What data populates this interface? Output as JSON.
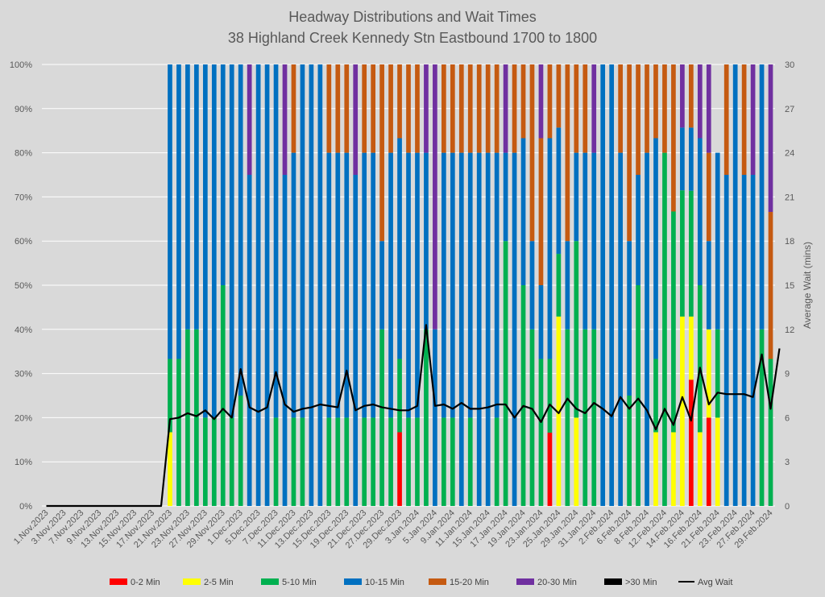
{
  "chart_data": {
    "type": "bar",
    "stacked": true,
    "percent": true,
    "title": "Headway Distributions and Wait Times",
    "subtitle": "38 Highland Creek  Kennedy Stn Eastbound 1700 to 1800",
    "ylabel_right": "Average Wait (mins)",
    "ylim_left": [
      0,
      100
    ],
    "ylim_right": [
      0,
      30
    ],
    "yticks_left": [
      "0%",
      "10%",
      "20%",
      "30%",
      "40%",
      "50%",
      "60%",
      "70%",
      "80%",
      "90%",
      "100%"
    ],
    "yticks_right": [
      "0",
      "3",
      "6",
      "9",
      "12",
      "15",
      "18",
      "21",
      "24",
      "27",
      "30"
    ],
    "grid": true,
    "legend_position": "bottom",
    "x_tick_labels": [
      "1.Nov.2023",
      "3.Nov.2023",
      "7.Nov.2023",
      "9.Nov.2023",
      "13.Nov.2023",
      "15.Nov.2023",
      "17.Nov.2023",
      "21.Nov.2023",
      "23.Nov.2023",
      "27.Nov.2023",
      "29.Nov.2023",
      "1.Dec.2023",
      "5.Dec.2023",
      "7.Dec.2023",
      "11.Dec.2023",
      "13.Dec.2023",
      "15.Dec.2023",
      "19.Dec.2023",
      "21.Dec.2023",
      "27.Dec.2023",
      "29.Dec.2023",
      "3.Jan.2024",
      "5.Jan.2024",
      "9.Jan.2024",
      "11.Jan.2024",
      "15.Jan.2024",
      "17.Jan.2024",
      "19.Jan.2024",
      "23.Jan.2024",
      "25.Jan.2024",
      "29.Jan.2024",
      "31.Jan.2024",
      "2.Feb.2024",
      "6.Feb.2024",
      "8.Feb.2024",
      "12.Feb.2024",
      "14.Feb.2024",
      "16.Feb.2024",
      "21.Feb.2024",
      "23.Feb.2024",
      "27.Feb.2024",
      "29.Feb.2024"
    ],
    "series": [
      {
        "name": "0-2 Min",
        "color": "#ff0000"
      },
      {
        "name": "2-5 Min",
        "color": "#ffff00"
      },
      {
        "name": "5-10 Min",
        "color": "#00b050"
      },
      {
        "name": "10-15 Min",
        "color": "#0070c0"
      },
      {
        "name": "15-20 Min",
        "color": "#c55a11"
      },
      {
        "name": "20-30 Min",
        "color": "#7030a0"
      },
      {
        "name": ">30 Min",
        "color": "#000000"
      },
      {
        "name": "Avg Wait",
        "color": "#000000",
        "type": "line"
      }
    ],
    "bars": [
      [
        0,
        0,
        0,
        0,
        0,
        0,
        0
      ],
      [
        0,
        0,
        0,
        0,
        0,
        0,
        0
      ],
      [
        0,
        0,
        0,
        0,
        0,
        0,
        0
      ],
      [
        0,
        0,
        0,
        0,
        0,
        0,
        0
      ],
      [
        0,
        0,
        0,
        0,
        0,
        0,
        0
      ],
      [
        0,
        0,
        0,
        0,
        0,
        0,
        0
      ],
      [
        0,
        0,
        0,
        0,
        0,
        0,
        0
      ],
      [
        0,
        0,
        0,
        0,
        0,
        0,
        0
      ],
      [
        0,
        0,
        0,
        0,
        0,
        0,
        0
      ],
      [
        0,
        0,
        0,
        0,
        0,
        0,
        0
      ],
      [
        0,
        0,
        0,
        0,
        0,
        0,
        0
      ],
      [
        0,
        0,
        0,
        0,
        0,
        0,
        0
      ],
      [
        0,
        0,
        0,
        0,
        0,
        0,
        0
      ],
      [
        0,
        0,
        0,
        0,
        0,
        0,
        0
      ],
      [
        0,
        16.7,
        16.6,
        66.7,
        0,
        0,
        0
      ],
      [
        0,
        0,
        33.3,
        66.7,
        0,
        0,
        0
      ],
      [
        0,
        0,
        40,
        60,
        0,
        0,
        0
      ],
      [
        0,
        0,
        40,
        60,
        0,
        0,
        0
      ],
      [
        0,
        0,
        20,
        80,
        0,
        0,
        0
      ],
      [
        0,
        0,
        20,
        80,
        0,
        0,
        0
      ],
      [
        0,
        0,
        50,
        50,
        0,
        0,
        0
      ],
      [
        0,
        0,
        20,
        80,
        0,
        0,
        0
      ],
      [
        0,
        0,
        25,
        75,
        0,
        0,
        0
      ],
      [
        0,
        0,
        0,
        75,
        0,
        25,
        0
      ],
      [
        0,
        0,
        0,
        100,
        0,
        0,
        0
      ],
      [
        0,
        0,
        0,
        100,
        0,
        0,
        0
      ],
      [
        0,
        0,
        20,
        80,
        0,
        0,
        0
      ],
      [
        0,
        0,
        0,
        75,
        0,
        25,
        0
      ],
      [
        0,
        0,
        20,
        60,
        20,
        0,
        0
      ],
      [
        0,
        0,
        20,
        80,
        0,
        0,
        0
      ],
      [
        0,
        0,
        0,
        100,
        0,
        0,
        0
      ],
      [
        0,
        0,
        0,
        100,
        0,
        0,
        0
      ],
      [
        0,
        0,
        20,
        60,
        20,
        0,
        0
      ],
      [
        0,
        0,
        20,
        60,
        20,
        0,
        0
      ],
      [
        0,
        0,
        20,
        60,
        20,
        0,
        0
      ],
      [
        0,
        0,
        0,
        75,
        0,
        25,
        0
      ],
      [
        0,
        0,
        20,
        60,
        20,
        0,
        0
      ],
      [
        0,
        0,
        20,
        60,
        20,
        0,
        0
      ],
      [
        0,
        0,
        40,
        20,
        40,
        0,
        0
      ],
      [
        0,
        0,
        20,
        60,
        20,
        0,
        0
      ],
      [
        16.7,
        0,
        16.6,
        50,
        16.7,
        0,
        0
      ],
      [
        0,
        0,
        20,
        60,
        20,
        0,
        0
      ],
      [
        0,
        0,
        20,
        60,
        20,
        0,
        0
      ],
      [
        0,
        0,
        40,
        40,
        0,
        20,
        0
      ],
      [
        0,
        0,
        0,
        40,
        0,
        60,
        0
      ],
      [
        0,
        0,
        20,
        60,
        20,
        0,
        0
      ],
      [
        0,
        0,
        20,
        60,
        20,
        0,
        0
      ],
      [
        0,
        0,
        0,
        80,
        20,
        0,
        0
      ],
      [
        0,
        0,
        20,
        60,
        20,
        0,
        0
      ],
      [
        0,
        0,
        0,
        80,
        20,
        0,
        0
      ],
      [
        0,
        0,
        0,
        80,
        20,
        0,
        0
      ],
      [
        0,
        0,
        20,
        60,
        20,
        0,
        0
      ],
      [
        0,
        0,
        60,
        20,
        0,
        20,
        0
      ],
      [
        0,
        0,
        0,
        80,
        20,
        0,
        0
      ],
      [
        0,
        0,
        50,
        33.3,
        16.7,
        0,
        0
      ],
      [
        0,
        0,
        40,
        20,
        40,
        0,
        0
      ],
      [
        0,
        0,
        33.3,
        16.7,
        33.3,
        16.7,
        0
      ],
      [
        16.6,
        0,
        16.7,
        50,
        16.7,
        0,
        0
      ],
      [
        0,
        42.9,
        14.2,
        28.6,
        14.3,
        0,
        0
      ],
      [
        0,
        0,
        40,
        20,
        40,
        0,
        0
      ],
      [
        0,
        20,
        40,
        20,
        20,
        0,
        0
      ],
      [
        0,
        0,
        40,
        40,
        20,
        0,
        0
      ],
      [
        0,
        0,
        40,
        40,
        0,
        20,
        0
      ],
      [
        0,
        0,
        0,
        100,
        0,
        0,
        0
      ],
      [
        0,
        0,
        0,
        100,
        0,
        0,
        0
      ],
      [
        0,
        0,
        0,
        80,
        20,
        0,
        0
      ],
      [
        0,
        0,
        25,
        35,
        40,
        0,
        0
      ],
      [
        0,
        0,
        50,
        25,
        25,
        0,
        0
      ],
      [
        0,
        0,
        0,
        80,
        20,
        0,
        0
      ],
      [
        0,
        16.7,
        16.6,
        50,
        16.7,
        0,
        0
      ],
      [
        0,
        0,
        80,
        0,
        20,
        0,
        0
      ],
      [
        0,
        16.7,
        50,
        0,
        33.3,
        0,
        0
      ],
      [
        0,
        42.9,
        28.6,
        14.2,
        0,
        14.3,
        0
      ],
      [
        28.6,
        14.3,
        28.5,
        14.3,
        14.3,
        0,
        0
      ],
      [
        0,
        16.7,
        33.3,
        33.3,
        0,
        16.7,
        0
      ],
      [
        20,
        20,
        0,
        20,
        20,
        20,
        0
      ],
      [
        0,
        20,
        20,
        40,
        0,
        0,
        0
      ],
      [
        0,
        0,
        0,
        75,
        25,
        0,
        0
      ],
      [
        0,
        0,
        0,
        100,
        0,
        0,
        0
      ],
      [
        0,
        0,
        0,
        75,
        25,
        0,
        0
      ],
      [
        0,
        0,
        0,
        75,
        0,
        25,
        0
      ],
      [
        0,
        0,
        40,
        60,
        0,
        0,
        0
      ],
      [
        0,
        0,
        33.3,
        0,
        33.3,
        33.4,
        0
      ]
    ],
    "avg_wait": [
      0,
      0,
      0,
      0,
      0,
      0,
      0,
      0,
      0,
      0,
      0,
      0,
      0,
      0,
      5.9,
      6.0,
      6.3,
      6.1,
      6.5,
      5.9,
      6.6,
      6.0,
      9.3,
      6.7,
      6.4,
      6.7,
      9.1,
      6.9,
      6.4,
      6.6,
      6.7,
      6.9,
      6.8,
      6.7,
      9.2,
      6.5,
      6.8,
      6.9,
      6.7,
      6.6,
      6.5,
      6.5,
      6.8,
      12.3,
      6.8,
      6.9,
      6.6,
      7.0,
      6.6,
      6.6,
      6.7,
      6.9,
      6.9,
      6.0,
      6.8,
      6.6,
      5.7,
      6.9,
      6.3,
      7.3,
      6.6,
      6.3,
      7.0,
      6.6,
      6.1,
      7.4,
      6.6,
      7.3,
      6.5,
      5.2,
      6.6,
      5.5,
      7.4,
      5.8,
      9.4,
      6.9,
      7.7,
      7.6,
      7.6,
      7.6,
      7.4,
      10.3,
      6.6,
      10.7
    ]
  }
}
